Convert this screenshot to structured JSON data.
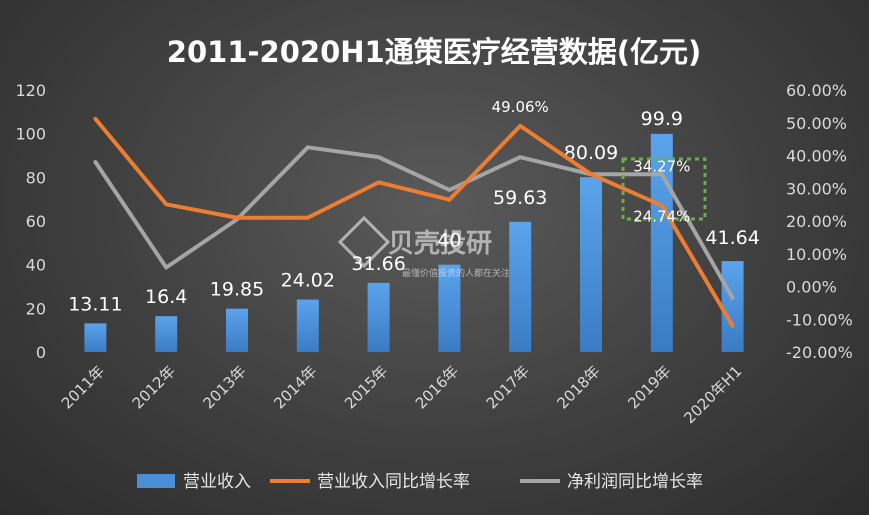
{
  "chart_data": {
    "type": "bar+line",
    "title": "2011-2020H1通策医疗经营数据(亿元)",
    "categories": [
      "2011年",
      "2012年",
      "2013年",
      "2014年",
      "2015年",
      "2016年",
      "2017年",
      "2018年",
      "2019年",
      "2020年H1"
    ],
    "left_axis": {
      "min": 0,
      "max": 120,
      "step": 20,
      "ticks": [
        "0",
        "20",
        "40",
        "60",
        "80",
        "100",
        "120"
      ]
    },
    "right_axis": {
      "min": -20,
      "max": 60,
      "step": 10,
      "ticks": [
        "-20.00%",
        "-10.00%",
        "0.00%",
        "10.00%",
        "20.00%",
        "30.00%",
        "40.00%",
        "50.00%",
        "60.00%"
      ]
    },
    "series": [
      {
        "name": "营业收入",
        "kind": "bar",
        "axis": "left",
        "color": "#4a90d9",
        "values": [
          13.11,
          16.4,
          19.85,
          24.02,
          31.66,
          40,
          59.63,
          80.09,
          99.9,
          41.64
        ],
        "labels": [
          "13.11",
          "16.4",
          "19.85",
          "24.02",
          "31.66",
          "40",
          "59.63",
          "80.09",
          "99.9",
          "41.64"
        ]
      },
      {
        "name": "营业收入同比增长率",
        "kind": "line",
        "axis": "right",
        "color": "#ed7d31",
        "values": [
          51.2,
          25.1,
          21.0,
          21.0,
          31.8,
          26.5,
          49.06,
          34.3,
          24.74,
          -12.0
        ]
      },
      {
        "name": "净利润同比增长率",
        "kind": "line",
        "axis": "right",
        "color": "#a5a5a5",
        "values": [
          38.0,
          5.8,
          20.5,
          42.5,
          39.5,
          29.5,
          39.5,
          34.27,
          34.27,
          -3.5
        ]
      }
    ],
    "annotations": [
      {
        "text": "49.06%",
        "category": "2017年",
        "value": 49.06
      },
      {
        "text": "34.27%",
        "category": "2019年",
        "value": 34.27
      },
      {
        "text": "24.74%",
        "category": "2019年",
        "value": 24.74
      }
    ],
    "legend_position": "bottom",
    "grid": false
  },
  "watermark": {
    "text": "贝壳投研",
    "slogan": "最懂价值投资的人都在关注"
  }
}
